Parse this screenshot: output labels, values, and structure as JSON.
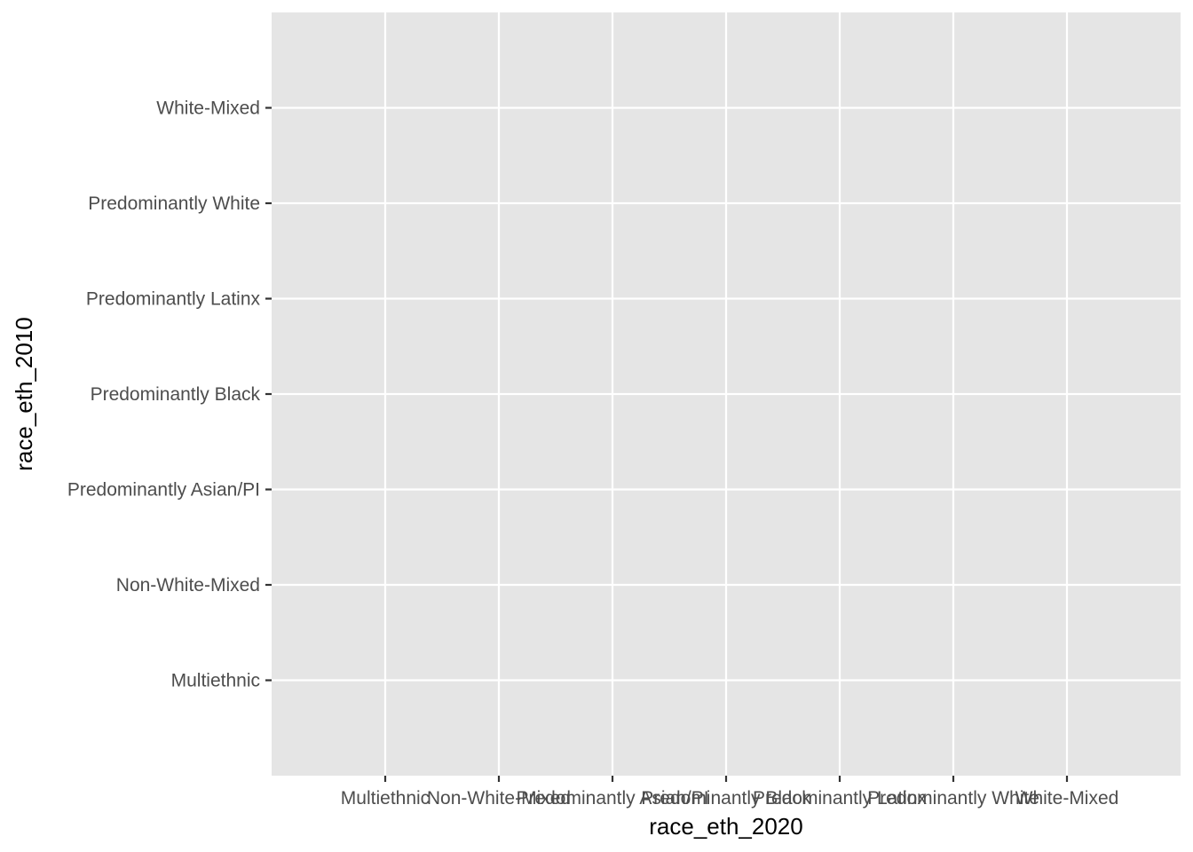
{
  "chart_data": {
    "type": "heatmap",
    "title": "",
    "xlabel": "race_eth_2020",
    "ylabel": "race_eth_2010",
    "x_categories": [
      "Multiethnic",
      "Non-White-Mixed",
      "Predominantly Asian/PI",
      "Predominantly Black",
      "Predominantly Latinx",
      "Predominantly White",
      "White-Mixed"
    ],
    "y_categories": [
      "Multiethnic",
      "Non-White-Mixed",
      "Predominantly Asian/PI",
      "Predominantly Black",
      "Predominantly Latinx",
      "Predominantly White",
      "White-Mixed"
    ],
    "values": [],
    "grid": true,
    "legend": "none",
    "colors": {
      "panel": "#e5e5e5",
      "grid": "#ffffff",
      "tick": "#333333",
      "tick_text": "#4d4d4d",
      "title_text": "#000000"
    }
  }
}
